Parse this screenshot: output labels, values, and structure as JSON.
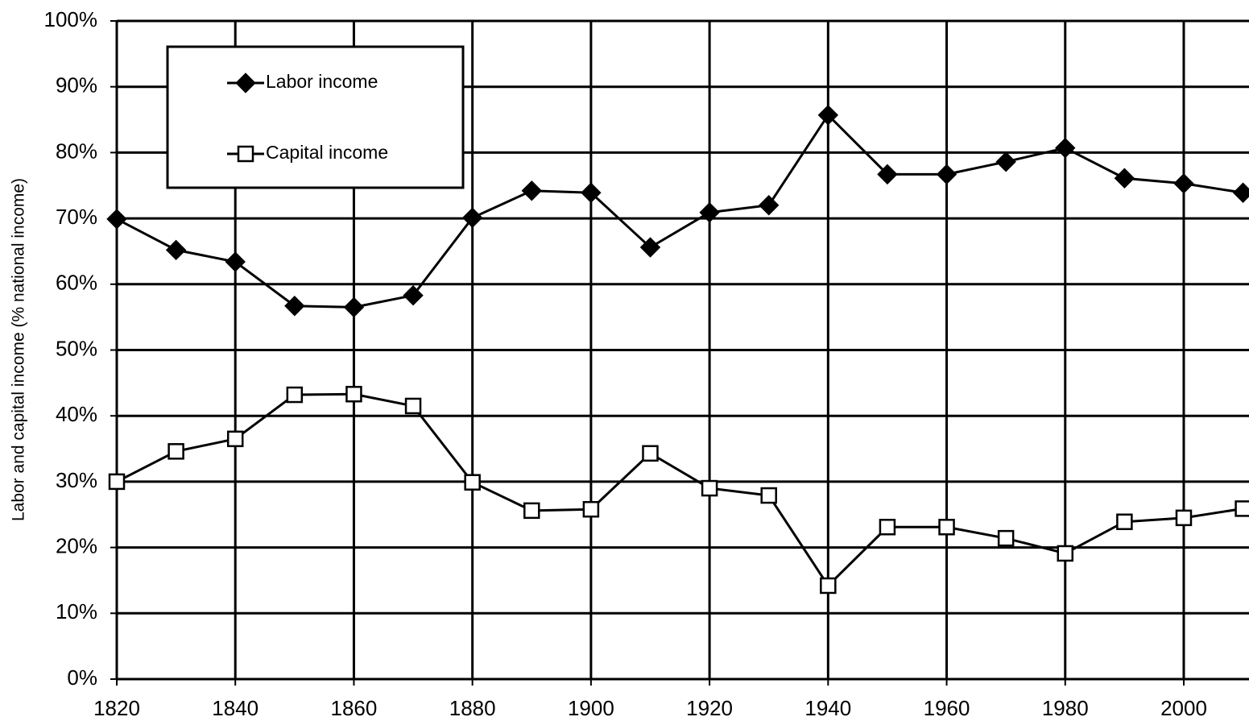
{
  "chart_data": {
    "type": "line",
    "y_label": "Labor and capital income (% national income)",
    "x": [
      1820,
      1830,
      1840,
      1850,
      1860,
      1870,
      1880,
      1890,
      1900,
      1910,
      1920,
      1930,
      1940,
      1950,
      1960,
      1970,
      1980,
      1990,
      2000,
      2010
    ],
    "series": [
      {
        "name": "Labor income",
        "color": "#000000",
        "marker": "diamond",
        "values": [
          69.9,
          65.2,
          63.4,
          56.7,
          56.5,
          58.3,
          70.1,
          74.2,
          73.9,
          65.6,
          70.9,
          72.0,
          85.7,
          76.7,
          76.7,
          78.6,
          80.7,
          76.1,
          75.3,
          73.9
        ]
      },
      {
        "name": "Capital income",
        "color": "#000000",
        "marker": "square-open",
        "values": [
          30.0,
          34.6,
          36.5,
          43.2,
          43.3,
          41.5,
          29.9,
          25.6,
          25.8,
          34.3,
          29.0,
          27.9,
          14.2,
          23.1,
          23.1,
          21.4,
          19.1,
          23.9,
          24.5,
          25.9
        ]
      }
    ],
    "xlim": [
      1820,
      2010
    ],
    "xticks": [
      1820,
      1840,
      1860,
      1880,
      1900,
      1920,
      1940,
      1960,
      1980,
      2000
    ],
    "ylim": [
      0,
      100
    ],
    "yticks": [
      {
        "value": 0,
        "label": "0%"
      },
      {
        "value": 10,
        "label": "10%"
      },
      {
        "value": 20,
        "label": "20%"
      },
      {
        "value": 30,
        "label": "30%"
      },
      {
        "value": 40,
        "label": "40%"
      },
      {
        "value": 50,
        "label": "50%"
      },
      {
        "value": 60,
        "label": "60%"
      },
      {
        "value": 70,
        "label": "70%"
      },
      {
        "value": 80,
        "label": "80%"
      },
      {
        "value": 90,
        "label": "90%"
      },
      {
        "value": 100,
        "label": "100%"
      }
    ],
    "grid": true,
    "legend_position": "upper left"
  }
}
